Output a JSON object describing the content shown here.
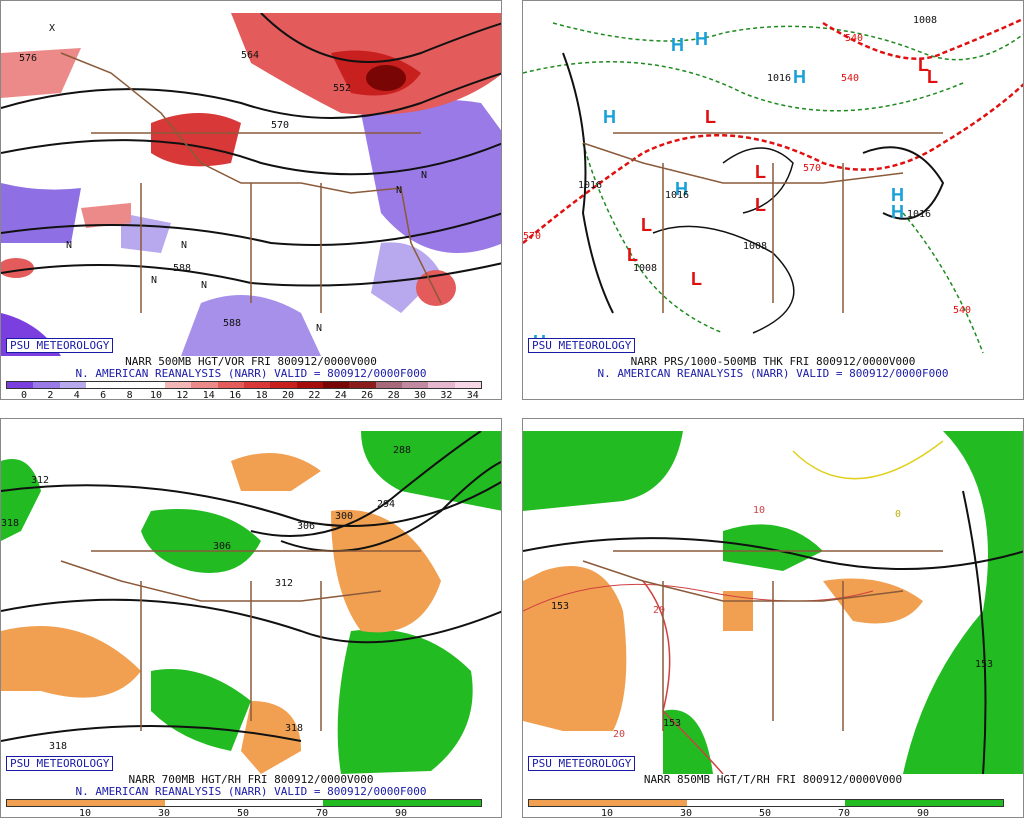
{
  "badge": "PSU METEOROLOGY",
  "panels": {
    "p1": {
      "line1": "NARR 500MB HGT/VOR FRI 800912/0000V000",
      "line2": "N. AMERICAN REANALYSIS (NARR) VALID = 800912/0000F000",
      "scale_ticks": [
        "0",
        "2",
        "4",
        "6",
        "8",
        "10",
        "12",
        "14",
        "16",
        "18",
        "20",
        "22",
        "24",
        "26",
        "28",
        "30",
        "32",
        "34"
      ],
      "scale_colors": [
        "#7b3fe0",
        "#9a7ae6",
        "#b8a8ee",
        "#ffffff",
        "#ffffff",
        "#ffffff",
        "#f3b7b7",
        "#ec8a8a",
        "#e35b5b",
        "#d83838",
        "#c81f1f",
        "#a50c0c",
        "#7a0505",
        "#8c1c1c",
        "#a86a7a",
        "#c18aa0",
        "#e6b8d0",
        "#f7d6e6"
      ],
      "labels": [
        "576",
        "564",
        "552",
        "570",
        "588",
        "588",
        "N",
        "N",
        "N",
        "N",
        "N",
        "N",
        "N",
        "X"
      ]
    },
    "p2": {
      "line1": "NARR PRS/1000-500MB THK FRI 800912/0000V000",
      "line2": "N. AMERICAN REANALYSIS (NARR) VALID = 800912/0000F000",
      "labels": [
        "1016",
        "1016",
        "1016",
        "1016",
        "1008",
        "1008",
        "1008",
        "570",
        "540",
        "540",
        "540",
        "570"
      ],
      "highs": "H",
      "lows": "L"
    },
    "p3": {
      "line1": "NARR 700MB HGT/RH FRI 800912/0000V000",
      "line2": "N. AMERICAN REANALYSIS (NARR) VALID = 800912/0000F000",
      "scale_ticks": [
        "10",
        "30",
        "50",
        "70",
        "90"
      ],
      "labels": [
        "312",
        "318",
        "306",
        "306",
        "300",
        "294",
        "288",
        "312",
        "318",
        "318"
      ]
    },
    "p4": {
      "line1": "NARR 850MB HGT/T/RH FRI 800912/0000V000",
      "scale_ticks": [
        "10",
        "30",
        "50",
        "70",
        "90"
      ],
      "labels": [
        "153",
        "153",
        "153",
        "10",
        "20",
        "20",
        "0"
      ]
    }
  },
  "colors": {
    "green": "#22bb22",
    "orange": "#f0a050",
    "blue": "#1a1aa8",
    "hi": "#1aa0d8",
    "lo": "#e01010"
  }
}
